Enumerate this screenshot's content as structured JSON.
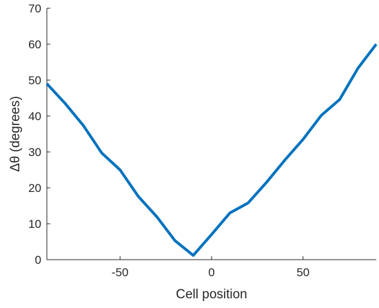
{
  "chart_data": {
    "type": "line",
    "x": [
      -90,
      -80,
      -70,
      -60,
      -50,
      -40,
      -30,
      -20,
      -10,
      0,
      10,
      20,
      30,
      40,
      50,
      60,
      70,
      80,
      90
    ],
    "series": [
      {
        "color": "#0072bd",
        "values": [
          49,
          43.5,
          37.3,
          29.7,
          25,
          17.6,
          12,
          5.3,
          1.2,
          7,
          13,
          15.8,
          21.5,
          27.7,
          33.5,
          40.2,
          44.6,
          53.3,
          60
        ]
      }
    ],
    "xlabel": "Cell position",
    "ylabel": "Δθ (degrees)",
    "xlim": [
      -90,
      90
    ],
    "xticks": [
      -50,
      0,
      50
    ],
    "ylim": [
      0,
      70
    ],
    "yticks": [
      0,
      10,
      20,
      30,
      40,
      50,
      60,
      70
    ]
  }
}
